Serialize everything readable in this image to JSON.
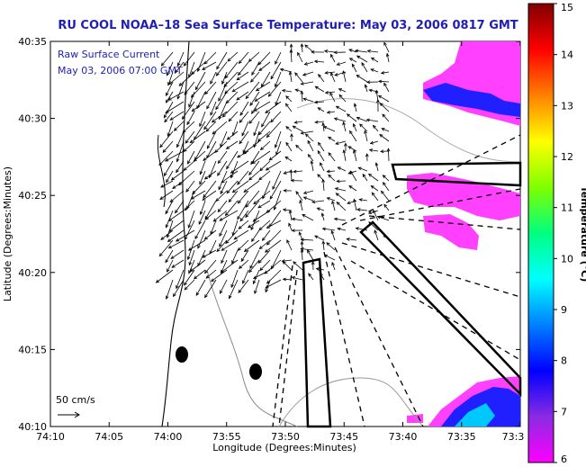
{
  "chart_data": {
    "type": "vector-field-map",
    "title": "RU COOL  NOAA–18  Sea Surface Temperature:  May 03, 2006 0817 GMT",
    "annotations": [
      "Raw Surface Current",
      "May 03, 2006 07:00 GMT"
    ],
    "scale_label": "50 cm/s",
    "xlabel": "Longitude (Degrees:Minutes)",
    "ylabel": "Latitude (Degrees:Minutes)",
    "x_tick_labels": [
      "74:10",
      "74:05",
      "74:00",
      "73:55",
      "73:50",
      "73:45",
      "73:40",
      "73:35",
      "73:3"
    ],
    "y_tick_labels": [
      "40:35",
      "40:30",
      "40:25",
      "40:20",
      "40:15",
      "40:10"
    ],
    "colorbar": {
      "label": "Temperature (°C)",
      "ticks": [
        "15",
        "14",
        "13",
        "12",
        "11",
        "10",
        "9",
        "8",
        "7",
        "6"
      ],
      "range": [
        6,
        15
      ],
      "colors": [
        "#ff00ff",
        "#8a2be2",
        "#0000ff",
        "#0080ff",
        "#00ffff",
        "#00ff80",
        "#80ff00",
        "#ffff00",
        "#ff8000",
        "#ff0000",
        "#800000"
      ]
    },
    "sst_patch_colors": [
      "#ff40ff",
      "#2020ff",
      "#00c8ff"
    ]
  }
}
